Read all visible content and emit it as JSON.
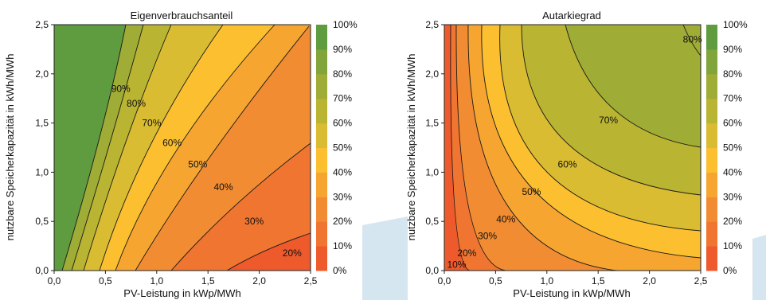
{
  "chart_data": [
    {
      "type": "heatmap",
      "title": "Eigenverbrauchsanteil",
      "xlabel": "PV-Leistung in kWp/MWh",
      "ylabel": "nutzbare Speicherkapazität in kWh/MWh",
      "xlim": [
        0,
        2.5
      ],
      "ylim": [
        0,
        2.5
      ],
      "xticks": [
        "0,0",
        "0,5",
        "1,0",
        "1,5",
        "2,0",
        "2,5"
      ],
      "yticks": [
        "0,0",
        "0,5",
        "1,0",
        "1,5",
        "2,0",
        "2,5"
      ],
      "colorbar_ticks": [
        "0%",
        "10%",
        "20%",
        "30%",
        "40%",
        "50%",
        "60%",
        "70%",
        "80%",
        "90%",
        "100%"
      ],
      "colorbar_colors": [
        "#ee5a2b",
        "#f07530",
        "#f28c32",
        "#f6a531",
        "#fbbf30",
        "#d9bc31",
        "#b9b432",
        "#9fac35",
        "#81a53b",
        "#5e9c3f"
      ],
      "levels": [
        20,
        30,
        40,
        50,
        60,
        70,
        80,
        90
      ],
      "contour_labels": [
        {
          "text": "90%",
          "x": 0.65,
          "y": 1.85
        },
        {
          "text": "80%",
          "x": 0.8,
          "y": 1.7
        },
        {
          "text": "70%",
          "x": 0.95,
          "y": 1.5
        },
        {
          "text": "60%",
          "x": 1.15,
          "y": 1.3
        },
        {
          "text": "50%",
          "x": 1.4,
          "y": 1.08
        },
        {
          "text": "40%",
          "x": 1.65,
          "y": 0.85
        },
        {
          "text": "30%",
          "x": 1.95,
          "y": 0.5
        },
        {
          "text": "20%",
          "x": 2.32,
          "y": 0.18
        }
      ]
    },
    {
      "type": "heatmap",
      "title": "Autarkiegrad",
      "xlabel": "PV-Leistung in kWp/MWh",
      "ylabel": "nutzbare Speicherkapazität in kWh/MWh",
      "xlim": [
        0,
        2.5
      ],
      "ylim": [
        0,
        2.5
      ],
      "xticks": [
        "0,0",
        "0,5",
        "1,0",
        "1,5",
        "2,0",
        "2,5"
      ],
      "yticks": [
        "0,0",
        "0,5",
        "1,0",
        "1,5",
        "2,0",
        "2,5"
      ],
      "colorbar_ticks": [
        "0%",
        "10%",
        "20%",
        "30%",
        "40%",
        "50%",
        "60%",
        "70%",
        "80%",
        "90%",
        "100%"
      ],
      "colorbar_colors": [
        "#ee5a2b",
        "#f07530",
        "#f28c32",
        "#f6a531",
        "#fbbf30",
        "#d9bc31",
        "#b9b432",
        "#9fac35",
        "#81a53b",
        "#5e9c3f"
      ],
      "levels": [
        10,
        20,
        30,
        40,
        50,
        60,
        70,
        80
      ],
      "contour_labels": [
        {
          "text": "80%",
          "x": 2.42,
          "y": 2.35
        },
        {
          "text": "70%",
          "x": 1.6,
          "y": 1.53
        },
        {
          "text": "60%",
          "x": 1.2,
          "y": 1.08
        },
        {
          "text": "50%",
          "x": 0.85,
          "y": 0.8
        },
        {
          "text": "40%",
          "x": 0.6,
          "y": 0.52
        },
        {
          "text": "30%",
          "x": 0.42,
          "y": 0.35
        },
        {
          "text": "20%",
          "x": 0.22,
          "y": 0.18
        },
        {
          "text": "10%",
          "x": 0.12,
          "y": 0.06
        }
      ]
    }
  ]
}
